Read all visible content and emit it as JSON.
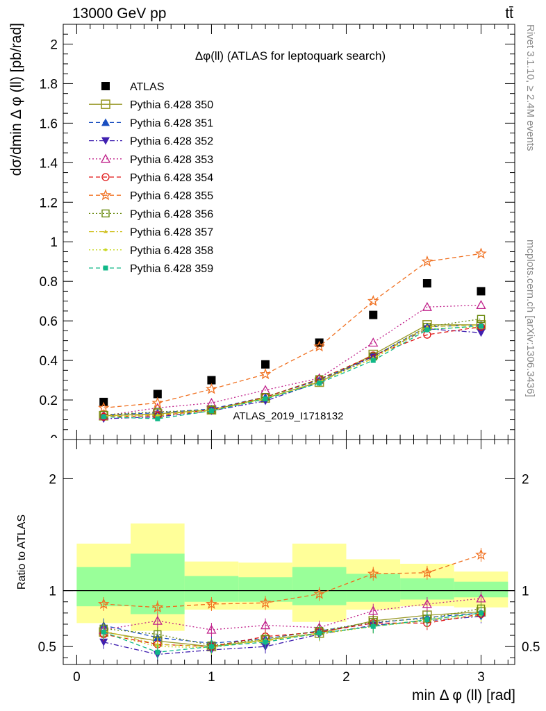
{
  "header": {
    "left": "13000 GeV pp",
    "right": "tt̄"
  },
  "side_notes": {
    "rivet": "Rivet 3.1.10, ≥ 2.4M events",
    "mcplots": "mcplots.cern.ch [arXiv:1306.3436]"
  },
  "watermark": "ATLAS_2019_I1718132",
  "chart_data": [
    {
      "type": "scatter",
      "panel": "main",
      "title": "Δφ(ll) (ATLAS for leptoquark search)",
      "xlabel": "min Δ φ (ll) [rad]",
      "ylabel": "dσ/dmin Δ φ (ll) [pb/rad]",
      "xlim": [
        -0.1,
        3.25
      ],
      "ylim": [
        0,
        2.1
      ],
      "x_ticks": [
        "0",
        "1",
        "2",
        "3"
      ],
      "y_ticks": [
        "0.2",
        "0.4",
        "0.6",
        "0.8",
        "1",
        "1.2",
        "1.4",
        "1.6",
        "1.8",
        "2"
      ],
      "x": [
        0.2,
        0.6,
        1.0,
        1.4,
        1.8,
        2.2,
        2.6,
        3.0
      ],
      "legend_position": "top-left",
      "series": [
        {
          "name": "ATLAS",
          "color": "#000000",
          "marker": "square-filled",
          "line": "none",
          "values": [
            0.19,
            0.23,
            0.3,
            0.38,
            0.49,
            0.63,
            0.79,
            0.75
          ]
        },
        {
          "name": "Pythia 6.428 350",
          "color": "#9a9a2a",
          "marker": "square-open-large",
          "line": "solid",
          "values": [
            0.12,
            0.13,
            0.15,
            0.21,
            0.29,
            0.43,
            0.58,
            0.58
          ]
        },
        {
          "name": "Pythia 6.428 351",
          "color": "#1a4fc0",
          "marker": "triangle-up-filled",
          "line": "dashed",
          "values": [
            0.125,
            0.135,
            0.155,
            0.215,
            0.3,
            0.42,
            0.57,
            0.58
          ]
        },
        {
          "name": "Pythia 6.428 352",
          "color": "#4020b0",
          "marker": "triangle-down-filled",
          "line": "dashdot",
          "values": [
            0.105,
            0.115,
            0.145,
            0.195,
            0.29,
            0.42,
            0.56,
            0.54
          ]
        },
        {
          "name": "Pythia 6.428 353",
          "color": "#c0208a",
          "marker": "triangle-up-open",
          "line": "dotted",
          "values": [
            0.12,
            0.16,
            0.185,
            0.25,
            0.31,
            0.49,
            0.67,
            0.68
          ]
        },
        {
          "name": "Pythia 6.428 354",
          "color": "#e01010",
          "marker": "circle-open",
          "line": "dashed",
          "values": [
            0.115,
            0.12,
            0.15,
            0.215,
            0.305,
            0.425,
            0.53,
            0.57
          ]
        },
        {
          "name": "Pythia 6.428 355",
          "color": "#f07020",
          "marker": "star-open",
          "line": "dashed",
          "values": [
            0.16,
            0.185,
            0.255,
            0.33,
            0.47,
            0.7,
            0.9,
            0.94
          ]
        },
        {
          "name": "Pythia 6.428 356",
          "color": "#6a8a10",
          "marker": "square-open",
          "line": "dotted",
          "values": [
            0.125,
            0.14,
            0.15,
            0.215,
            0.305,
            0.42,
            0.57,
            0.61
          ]
        },
        {
          "name": "Pythia 6.428 357",
          "color": "#d0c020",
          "marker": "tri-small",
          "line": "dashdot",
          "values": [
            0.12,
            0.125,
            0.15,
            0.205,
            0.295,
            0.41,
            0.57,
            0.58
          ]
        },
        {
          "name": "Pythia 6.428 358",
          "color": "#c8d820",
          "marker": "dot-small",
          "line": "dotted",
          "values": [
            0.115,
            0.12,
            0.145,
            0.21,
            0.29,
            0.41,
            0.56,
            0.57
          ]
        },
        {
          "name": "Pythia 6.428 359",
          "color": "#10b888",
          "marker": "square-small-filled",
          "line": "dashed",
          "values": [
            0.115,
            0.105,
            0.145,
            0.205,
            0.285,
            0.4,
            0.555,
            0.575
          ]
        }
      ]
    },
    {
      "type": "scatter",
      "panel": "ratio",
      "ylabel": "Ratio to ATLAS",
      "xlim": [
        -0.1,
        3.25
      ],
      "ylim": [
        0.34,
        2.35
      ],
      "x_ticks": [
        "0",
        "1",
        "2",
        "3"
      ],
      "y_ticks": [
        "0.5",
        "1",
        "2"
      ],
      "reference_line": 1,
      "bands": {
        "edges": [
          0.0,
          0.4,
          0.8,
          1.2,
          1.6,
          2.0,
          2.4,
          2.8,
          3.2
        ],
        "yellow_colour": "#ffff99",
        "green_colour": "#99ff99",
        "yellow": [
          [
            0.71,
            1.42
          ],
          [
            0.64,
            1.6
          ],
          [
            0.83,
            1.26
          ],
          [
            0.83,
            1.25
          ],
          [
            0.72,
            1.42
          ],
          [
            0.83,
            1.28
          ],
          [
            0.86,
            1.24
          ],
          [
            0.85,
            1.17
          ]
        ],
        "green": [
          [
            0.86,
            1.21
          ],
          [
            0.79,
            1.33
          ],
          [
            0.9,
            1.13
          ],
          [
            0.9,
            1.12
          ],
          [
            0.87,
            1.21
          ],
          [
            0.9,
            1.15
          ],
          [
            0.92,
            1.11
          ],
          [
            0.94,
            1.08
          ]
        ]
      },
      "x": [
        0.2,
        0.6,
        1.0,
        1.4,
        1.8,
        2.2,
        2.6,
        3.0
      ],
      "series": [
        {
          "name": "Pythia 6.428 350",
          "values": [
            0.63,
            0.55,
            0.5,
            0.56,
            0.62,
            0.73,
            0.78,
            0.81
          ]
        },
        {
          "name": "Pythia 6.428 351",
          "values": [
            0.69,
            0.58,
            0.53,
            0.57,
            0.64,
            0.71,
            0.76,
            0.8
          ]
        },
        {
          "name": "Pythia 6.428 352",
          "values": [
            0.54,
            0.43,
            0.47,
            0.5,
            0.61,
            0.69,
            0.73,
            0.77
          ]
        },
        {
          "name": "Pythia 6.428 353",
          "values": [
            0.65,
            0.73,
            0.65,
            0.69,
            0.67,
            0.82,
            0.88,
            0.93
          ]
        },
        {
          "name": "Pythia 6.428 354",
          "values": [
            0.61,
            0.52,
            0.5,
            0.59,
            0.63,
            0.71,
            0.71,
            0.79
          ]
        },
        {
          "name": "Pythia 6.428 355",
          "values": [
            0.88,
            0.85,
            0.88,
            0.89,
            0.97,
            1.15,
            1.16,
            1.32
          ]
        },
        {
          "name": "Pythia 6.428 356",
          "values": [
            0.66,
            0.61,
            0.51,
            0.57,
            0.64,
            0.72,
            0.75,
            0.84
          ]
        },
        {
          "name": "Pythia 6.428 357",
          "values": [
            0.64,
            0.52,
            0.5,
            0.55,
            0.62,
            0.68,
            0.74,
            0.8
          ]
        },
        {
          "name": "Pythia 6.428 358",
          "values": [
            0.62,
            0.5,
            0.49,
            0.56,
            0.61,
            0.68,
            0.73,
            0.78
          ]
        },
        {
          "name": "Pythia 6.428 359",
          "values": [
            0.63,
            0.45,
            0.5,
            0.54,
            0.62,
            0.68,
            0.74,
            0.8
          ]
        }
      ]
    }
  ]
}
